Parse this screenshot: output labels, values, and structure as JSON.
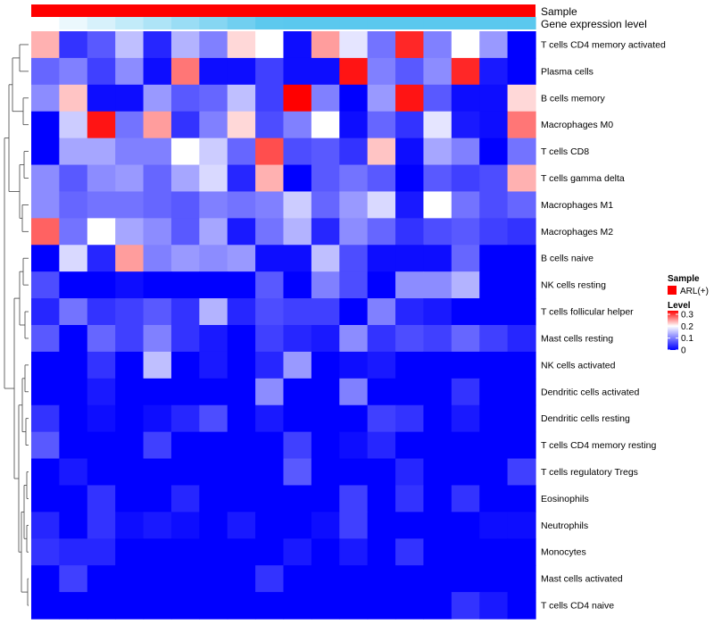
{
  "chart_data": {
    "type": "heatmap",
    "title": "",
    "rows": [
      "T cells CD4 memory activated",
      "Plasma cells",
      "B cells memory",
      "Macrophages M0",
      "T cells CD8",
      "T cells gamma delta",
      "Macrophages M1",
      "Macrophages M2",
      "B cells naive",
      "NK cells resting",
      "T cells follicular helper",
      "Mast cells resting",
      "NK cells activated",
      "Dendritic cells activated",
      "Dendritic cells resting",
      "T cells CD4 memory resting",
      "T cells regulatory  Tregs",
      "Eosinophils",
      "Neutrophils",
      "Monocytes",
      "Mast cells activated",
      "T cells CD4 naive"
    ],
    "n_columns": 18,
    "values": [
      [
        0.24,
        0.04,
        0.07,
        0.15,
        0.03,
        0.14,
        0.1,
        0.22,
        0.2,
        0.01,
        0.25,
        0.18,
        0.09,
        0.31,
        0.1,
        0.2,
        0.12,
        0.0
      ],
      [
        0.08,
        0.1,
        0.05,
        0.11,
        0.01,
        0.27,
        0.01,
        0.01,
        0.05,
        0.01,
        0.01,
        0.32,
        0.1,
        0.07,
        0.11,
        0.31,
        0.02,
        0.0
      ],
      [
        0.11,
        0.23,
        0.01,
        0.01,
        0.12,
        0.07,
        0.08,
        0.15,
        0.05,
        0.33,
        0.1,
        0.0,
        0.12,
        0.32,
        0.07,
        0.01,
        0.01,
        0.22
      ],
      [
        0.0,
        0.16,
        0.32,
        0.09,
        0.25,
        0.04,
        0.1,
        0.22,
        0.06,
        0.1,
        0.2,
        0.01,
        0.08,
        0.04,
        0.18,
        0.02,
        0.01,
        0.27
      ],
      [
        0.0,
        0.13,
        0.13,
        0.1,
        0.1,
        0.2,
        0.16,
        0.08,
        0.29,
        0.06,
        0.07,
        0.04,
        0.23,
        0.01,
        0.13,
        0.1,
        0.0,
        0.09
      ],
      [
        0.11,
        0.07,
        0.11,
        0.12,
        0.08,
        0.13,
        0.17,
        0.03,
        0.24,
        0.0,
        0.07,
        0.09,
        0.07,
        0.0,
        0.07,
        0.05,
        0.06,
        0.24
      ],
      [
        0.11,
        0.08,
        0.09,
        0.09,
        0.08,
        0.07,
        0.1,
        0.09,
        0.1,
        0.16,
        0.08,
        0.12,
        0.17,
        0.02,
        0.2,
        0.09,
        0.06,
        0.08
      ],
      [
        0.28,
        0.09,
        0.2,
        0.13,
        0.11,
        0.07,
        0.13,
        0.02,
        0.09,
        0.14,
        0.03,
        0.11,
        0.08,
        0.04,
        0.06,
        0.07,
        0.05,
        0.04
      ],
      [
        0.0,
        0.17,
        0.03,
        0.25,
        0.1,
        0.12,
        0.11,
        0.12,
        0.01,
        0.01,
        0.15,
        0.06,
        0.01,
        0.01,
        0.01,
        0.08,
        0.0,
        0.0
      ],
      [
        0.06,
        0.0,
        0.0,
        0.01,
        0.0,
        0.0,
        0.0,
        0.0,
        0.07,
        0.0,
        0.1,
        0.06,
        0.0,
        0.11,
        0.11,
        0.14,
        0.0,
        0.0
      ],
      [
        0.03,
        0.09,
        0.04,
        0.05,
        0.07,
        0.04,
        0.14,
        0.03,
        0.06,
        0.05,
        0.05,
        0.0,
        0.1,
        0.03,
        0.02,
        0.0,
        0.0,
        0.0
      ],
      [
        0.07,
        0.0,
        0.08,
        0.05,
        0.1,
        0.04,
        0.02,
        0.0,
        0.05,
        0.03,
        0.02,
        0.11,
        0.04,
        0.06,
        0.05,
        0.08,
        0.05,
        0.03
      ],
      [
        0.0,
        0.0,
        0.04,
        0.0,
        0.15,
        0.0,
        0.02,
        0.0,
        0.03,
        0.12,
        0.0,
        0.01,
        0.02,
        0.0,
        0.0,
        0.0,
        0.0,
        0.0
      ],
      [
        0.0,
        0.0,
        0.02,
        0.0,
        0.0,
        0.0,
        0.0,
        0.0,
        0.11,
        0.0,
        0.0,
        0.1,
        0.0,
        0.0,
        0.0,
        0.04,
        0.0,
        0.0
      ],
      [
        0.04,
        0.0,
        0.01,
        0.0,
        0.01,
        0.03,
        0.06,
        0.0,
        0.02,
        0.0,
        0.0,
        0.0,
        0.05,
        0.04,
        0.0,
        0.02,
        0.0,
        0.0
      ],
      [
        0.07,
        0.0,
        0.0,
        0.0,
        0.05,
        0.0,
        0.0,
        0.0,
        0.0,
        0.05,
        0.0,
        0.01,
        0.03,
        0.0,
        0.0,
        0.0,
        0.0,
        0.0
      ],
      [
        0.0,
        0.02,
        0.0,
        0.0,
        0.0,
        0.0,
        0.0,
        0.0,
        0.0,
        0.07,
        0.0,
        0.0,
        0.0,
        0.03,
        0.0,
        0.0,
        0.0,
        0.05
      ],
      [
        0.0,
        0.0,
        0.04,
        0.0,
        0.0,
        0.03,
        0.0,
        0.0,
        0.0,
        0.0,
        0.0,
        0.05,
        0.0,
        0.04,
        0.0,
        0.04,
        0.0,
        0.0
      ],
      [
        0.03,
        0.0,
        0.04,
        0.01,
        0.02,
        0.01,
        0.0,
        0.02,
        0.0,
        0.0,
        0.01,
        0.05,
        0.0,
        0.0,
        0.0,
        0.0,
        0.01,
        0.01
      ],
      [
        0.04,
        0.03,
        0.03,
        0.0,
        0.0,
        0.0,
        0.0,
        0.0,
        0.0,
        0.02,
        0.0,
        0.02,
        0.0,
        0.04,
        0.0,
        0.0,
        0.0,
        0.0
      ],
      [
        0.0,
        0.05,
        0.0,
        0.0,
        0.0,
        0.0,
        0.0,
        0.0,
        0.04,
        0.0,
        0.0,
        0.0,
        0.0,
        0.0,
        0.0,
        0.0,
        0.0,
        0.0
      ],
      [
        0.0,
        0.0,
        0.0,
        0.0,
        0.0,
        0.0,
        0.0,
        0.0,
        0.0,
        0.0,
        0.0,
        0.0,
        0.0,
        0.0,
        0.0,
        0.04,
        0.02,
        0.0
      ]
    ],
    "annotations": [
      {
        "name": "Sample",
        "label": "Sample",
        "color": "#ff0000"
      },
      {
        "name": "Gene expression level",
        "label": "Gene expression level",
        "gradient": [
          "#ffffff",
          "#5bc8ee"
        ]
      }
    ],
    "color_scale": {
      "min": 0,
      "mid": 0.2,
      "max": 0.33,
      "colors": [
        "#0000ff",
        "#ffffff",
        "#ff0000"
      ]
    },
    "legend": {
      "sample_title": "Sample",
      "sample_entry": "ARL(+)",
      "sample_color": "#ff0000",
      "level_title": "Level",
      "level_ticks": [
        0.3,
        0.2,
        0.1,
        0
      ],
      "level_tick_labels": [
        "0.3",
        "0.2",
        "0.1",
        "0"
      ]
    },
    "dendrogram": "rows",
    "legend_position": "right"
  }
}
